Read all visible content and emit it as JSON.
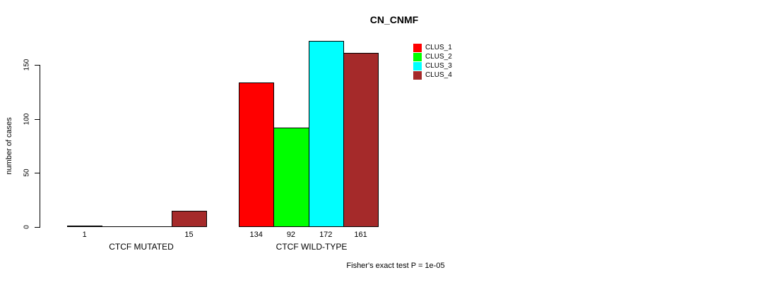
{
  "chart_data": {
    "type": "bar",
    "title": "CN_CNMF",
    "ylabel": "number of cases",
    "xlabel": "",
    "categories": [
      "CTCF MUTATED",
      "CTCF WILD-TYPE"
    ],
    "series": [
      {
        "name": "CLUS_1",
        "color": "#FF0000",
        "values": [
          1,
          134
        ]
      },
      {
        "name": "CLUS_2",
        "color": "#00FF00",
        "values": [
          0,
          92
        ]
      },
      {
        "name": "CLUS_3",
        "color": "#00FFFF",
        "values": [
          0,
          172
        ]
      },
      {
        "name": "CLUS_4",
        "color": "#A52A2A",
        "values": [
          15,
          161
        ]
      }
    ],
    "bar_value_labels": [
      [
        "1",
        "",
        "",
        "15"
      ],
      [
        "134",
        "92",
        "172",
        "161"
      ]
    ],
    "yticks": [
      0,
      50,
      100,
      150
    ],
    "ylim": [
      0,
      175
    ],
    "grid": false,
    "legend_position": "inside-top-right",
    "footer": "Fisher's exact test P = 1e-05",
    "colors": {
      "background": "#FFFFFF",
      "axis": "#000000",
      "bar_outline": "#000000",
      "text": "#000000"
    }
  }
}
